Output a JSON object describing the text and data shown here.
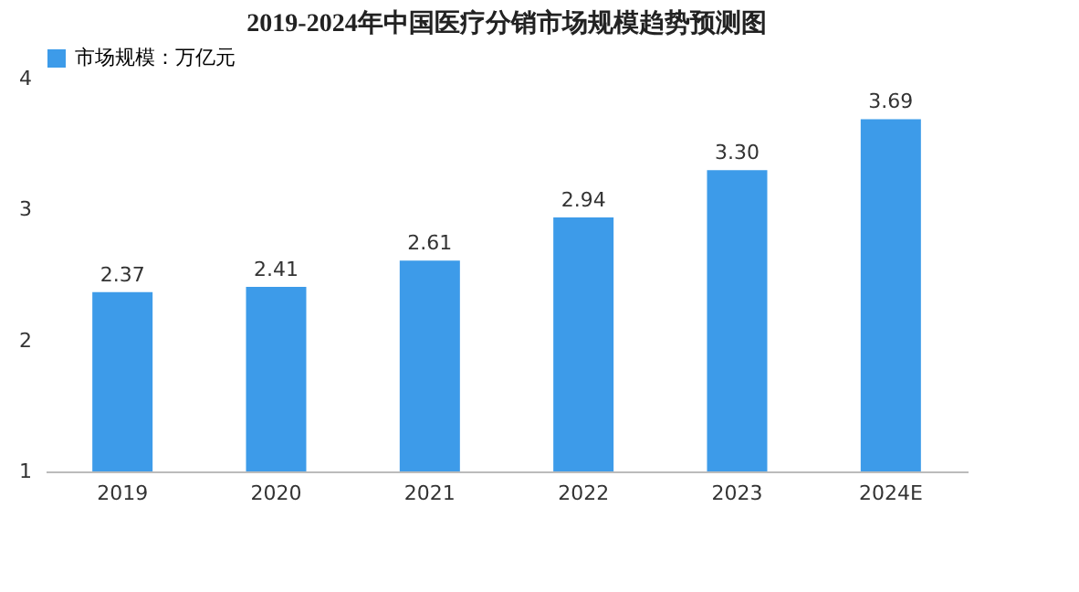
{
  "chart_data": {
    "type": "bar",
    "title": "2019-2024年中国医疗分销市场规模趋势预测图",
    "categories": [
      "2019",
      "2020",
      "2021",
      "2022",
      "2023",
      "2024E"
    ],
    "series": [
      {
        "name": "市场规模：万亿元",
        "color": "#3d9be9",
        "values": [
          2.37,
          2.41,
          2.61,
          2.94,
          3.3,
          3.69
        ]
      }
    ],
    "value_labels": [
      "2.37",
      "2.41",
      "2.61",
      "2.94",
      "3.30",
      "3.69"
    ],
    "ylim": [
      1,
      4
    ],
    "yticks": [
      1,
      2,
      3,
      4
    ],
    "grid": false,
    "legend": "top"
  }
}
